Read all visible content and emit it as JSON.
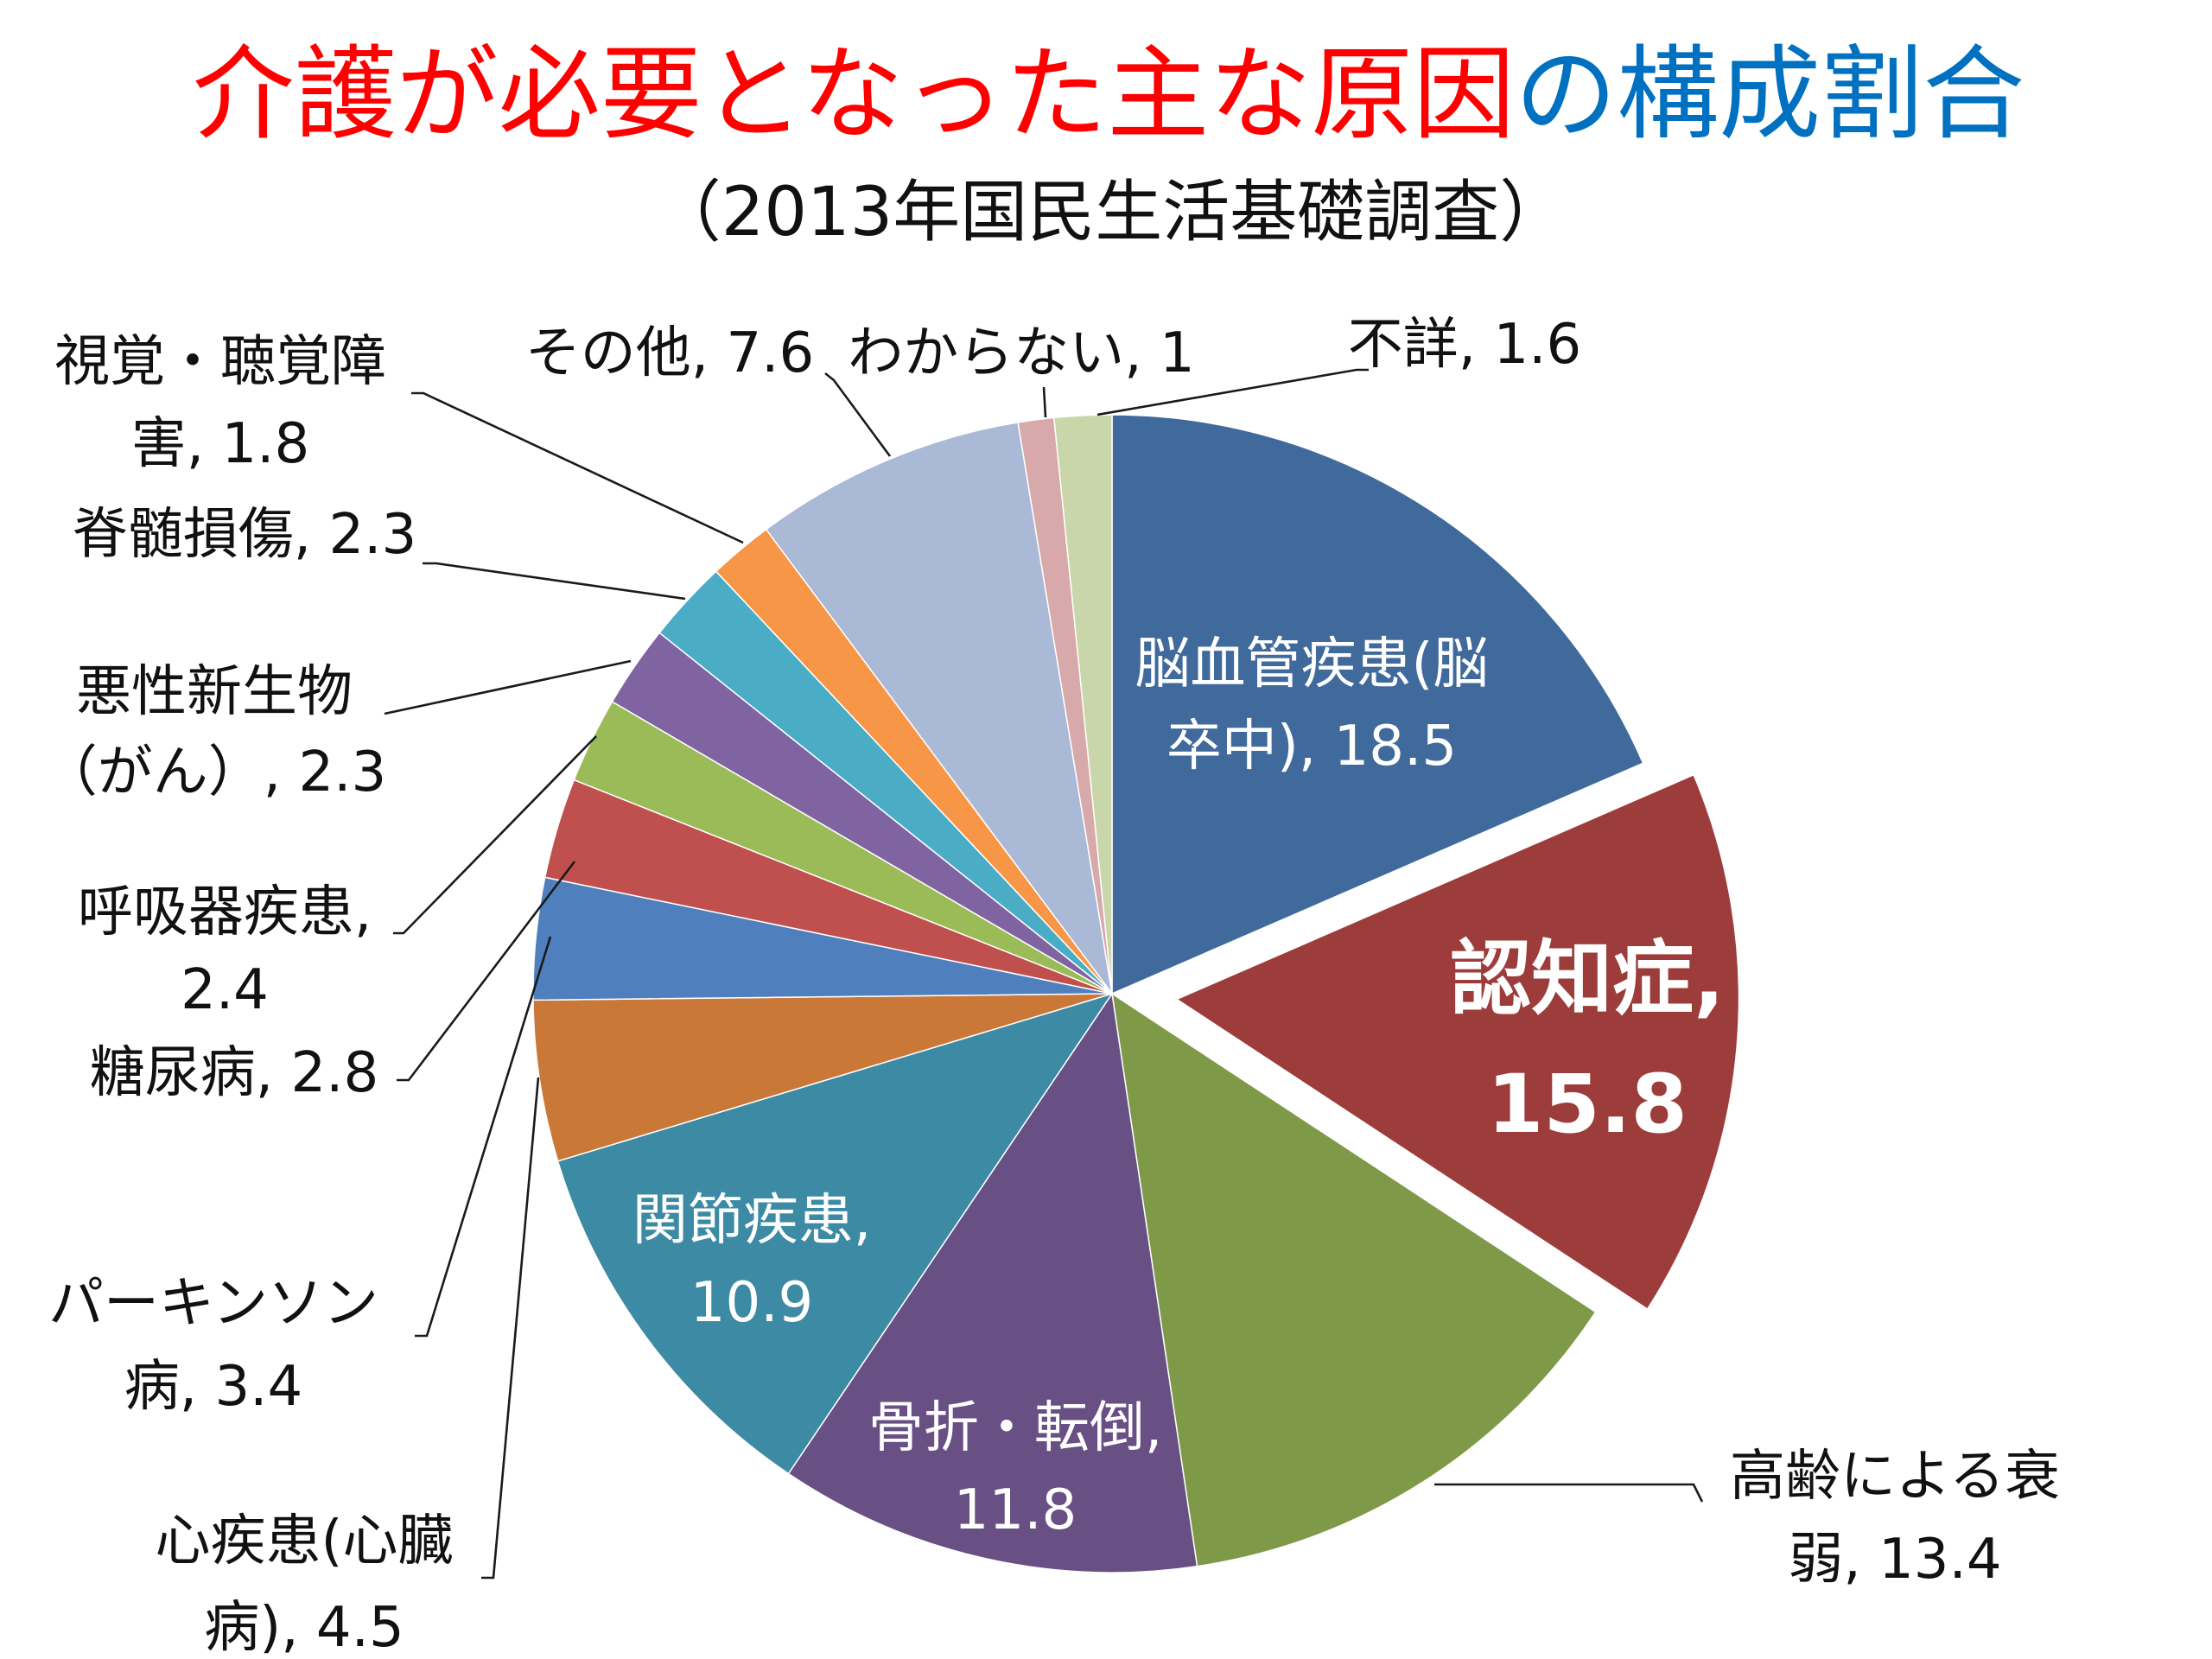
{
  "chart_data": {
    "type": "pie",
    "title_part1": "介護が必要となった主な原因",
    "title_part2": "の構成割合",
    "subtitle": "（2013年国民生活基礎調査）",
    "title_colors": {
      "part1": "#ff0000",
      "part2": "#0070c0"
    },
    "slices": [
      {
        "name": "脳血管疾患(脳卒中)",
        "value": 18.5,
        "color": "#406a9c"
      },
      {
        "name": "認知症",
        "value": 15.8,
        "color": "#9d3d3b",
        "exploded": true
      },
      {
        "name": "高齢による衰弱",
        "value": 13.4,
        "color": "#7e9a48"
      },
      {
        "name": "骨折・転倒",
        "value": 11.8,
        "color": "#684f84"
      },
      {
        "name": "関節疾患",
        "value": 10.9,
        "color": "#3c8aa3"
      },
      {
        "name": "心疾患(心臓病)",
        "value": 4.5,
        "color": "#ca7838"
      },
      {
        "name": "パーキンソン病",
        "value": 3.4,
        "color": "#4f80bd"
      },
      {
        "name": "糖尿病",
        "value": 2.8,
        "color": "#c0504d"
      },
      {
        "name": "呼吸器疾患",
        "value": 2.4,
        "color": "#9bbb59"
      },
      {
        "name": "悪性新生物（がん）",
        "value": 2.3,
        "color": "#8064a2"
      },
      {
        "name": "脊髄損傷",
        "value": 2.3,
        "color": "#4bacc6"
      },
      {
        "name": "視覚・聴覚障害",
        "value": 1.8,
        "color": "#f79646"
      },
      {
        "name": "その他",
        "value": 7.6,
        "color": "#aab9d5"
      },
      {
        "name": "わからない",
        "value": 1.0,
        "color": "#d8a9aa"
      },
      {
        "name": "不詳",
        "value": 1.6,
        "color": "#c9d6a9"
      }
    ],
    "labels": [
      {
        "lines": [
          "脳血管疾患(脳",
          "卒中), 18.5"
        ]
      },
      {
        "lines": [
          "認知症,",
          "15.8"
        ]
      },
      {
        "lines": [
          "高齢による衰",
          "弱, 13.4"
        ]
      },
      {
        "lines": [
          "骨折・転倒,",
          "11.8"
        ]
      },
      {
        "lines": [
          "関節疾患,",
          "10.9"
        ]
      },
      {
        "lines": [
          "心疾患(心臓",
          "病), 4.5"
        ]
      },
      {
        "lines": [
          "パーキンソン",
          "病, 3.4"
        ]
      },
      {
        "lines": [
          "糖尿病, 2.8"
        ]
      },
      {
        "lines": [
          "呼吸器疾患,",
          "2.4"
        ]
      },
      {
        "lines": [
          "悪性新生物",
          "（がん）, 2.3"
        ]
      },
      {
        "lines": [
          "脊髄損傷, 2.3"
        ]
      },
      {
        "lines": [
          "視覚・聴覚障",
          "害, 1.8"
        ]
      },
      {
        "lines": [
          "その他, 7.6"
        ]
      },
      {
        "lines": [
          "わからない, 1"
        ]
      },
      {
        "lines": [
          "不詳, 1.6"
        ]
      }
    ]
  }
}
